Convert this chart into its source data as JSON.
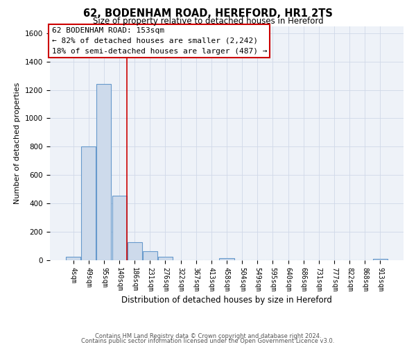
{
  "title": "62, BODENHAM ROAD, HEREFORD, HR1 2TS",
  "subtitle": "Size of property relative to detached houses in Hereford",
  "xlabel": "Distribution of detached houses by size in Hereford",
  "ylabel": "Number of detached properties",
  "bar_labels": [
    "4sqm",
    "49sqm",
    "95sqm",
    "140sqm",
    "186sqm",
    "231sqm",
    "276sqm",
    "322sqm",
    "367sqm",
    "413sqm",
    "458sqm",
    "504sqm",
    "549sqm",
    "595sqm",
    "640sqm",
    "686sqm",
    "731sqm",
    "777sqm",
    "822sqm",
    "868sqm",
    "913sqm"
  ],
  "bar_values": [
    25,
    800,
    1240,
    455,
    125,
    65,
    25,
    0,
    0,
    0,
    15,
    0,
    0,
    0,
    0,
    0,
    0,
    0,
    0,
    0,
    10
  ],
  "bar_color": "#cddaeb",
  "bar_edge_color": "#6699cc",
  "vline_color": "#cc0000",
  "vline_pos": 3.5,
  "annotation_title": "62 BODENHAM ROAD: 153sqm",
  "annotation_line1": "← 82% of detached houses are smaller (2,242)",
  "annotation_line2": "18% of semi-detached houses are larger (487) →",
  "annotation_box_facecolor": "#ffffff",
  "annotation_box_edgecolor": "#cc0000",
  "ylim": [
    0,
    1650
  ],
  "yticks": [
    0,
    200,
    400,
    600,
    800,
    1000,
    1200,
    1400,
    1600
  ],
  "footer1": "Contains HM Land Registry data © Crown copyright and database right 2024.",
  "footer2": "Contains public sector information licensed under the Open Government Licence v3.0.",
  "bg_color": "#ffffff",
  "plot_bg_color": "#eef2f8",
  "grid_color": "#d0d8e8",
  "title_fontsize": 10.5,
  "subtitle_fontsize": 8.5,
  "ylabel_fontsize": 8,
  "xlabel_fontsize": 8.5,
  "tick_fontsize": 7,
  "footer_fontsize": 6,
  "annotation_fontsize": 8
}
